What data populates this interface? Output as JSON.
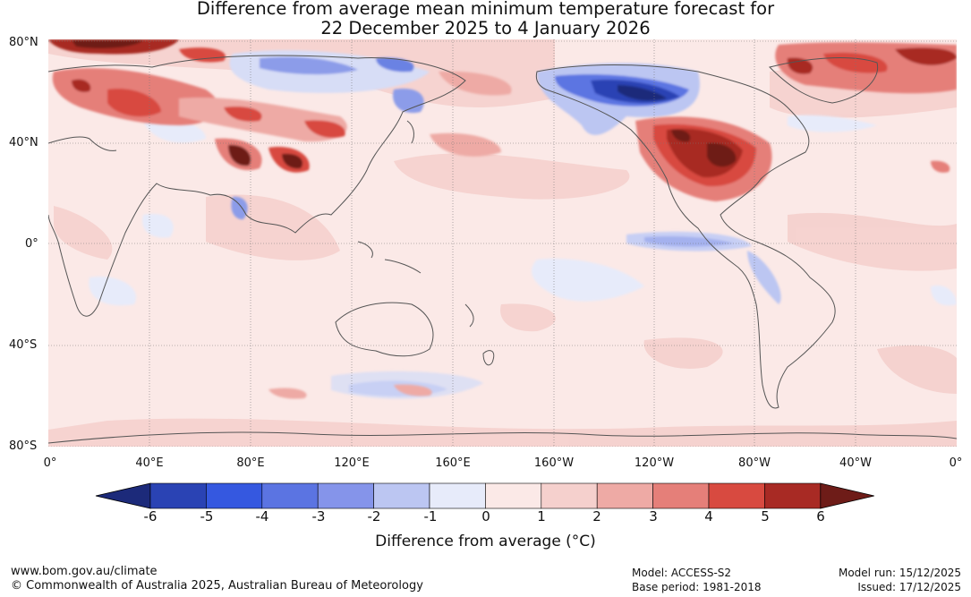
{
  "title": {
    "line1": "Difference from average mean minimum temperature forecast for",
    "line2": "22 December 2025 to 4 January 2026"
  },
  "map": {
    "lat_labels": [
      "80°N",
      "40°N",
      "0°",
      "40°S",
      "80°S"
    ],
    "lon_labels": [
      "0°",
      "40°E",
      "80°E",
      "120°E",
      "160°E",
      "160°W",
      "120°W",
      "80°W",
      "40°W",
      "0°"
    ],
    "background_color": "#fbe9e7"
  },
  "colorbar": {
    "ticks": [
      "-6",
      "-5",
      "-4",
      "-3",
      "-2",
      "-1",
      "0",
      "1",
      "2",
      "3",
      "4",
      "5",
      "6"
    ],
    "colors": [
      "#1c2a7a",
      "#2a43b4",
      "#3558e0",
      "#5b74e2",
      "#8594ea",
      "#bcc6f2",
      "#e7ebfa",
      "#fbe9e7",
      "#f5d0cd",
      "#eeaaa5",
      "#e57f79",
      "#d84a40",
      "#a82a24",
      "#6e1c18"
    ],
    "label": "Difference from average (°C)"
  },
  "footer": {
    "url": "www.bom.gov.au/climate",
    "copyright": "© Commonwealth of Australia 2025, Australian Bureau of Meteorology",
    "model": "Model: ACCESS-S2",
    "base_period": "Base period: 1981-2018",
    "model_run": "Model run: 15/12/2025",
    "issued": "Issued: 17/12/2025"
  }
}
